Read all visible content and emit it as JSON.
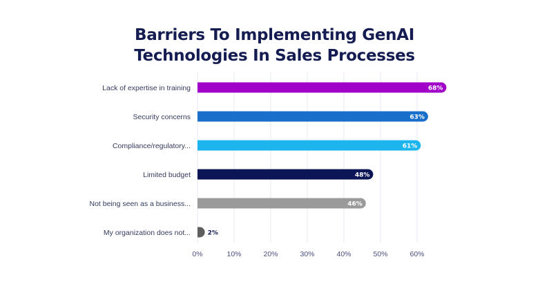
{
  "chart_data": {
    "type": "bar",
    "orientation": "horizontal",
    "title": "Barriers To Implementing GenAI Technologies In Sales Processes",
    "title_lines": [
      "Barriers To Implementing GenAI",
      "Technologies In Sales Processes"
    ],
    "categories": [
      "Lack of expertise in training",
      "Security concerns",
      "Compliance/regulatory...",
      "Limited budget",
      "Not being seen as a business...",
      "My organization does not..."
    ],
    "values": [
      68,
      63,
      61,
      48,
      46,
      2
    ],
    "value_labels": [
      "68%",
      "63%",
      "61%",
      "48%",
      "46%",
      "2%"
    ],
    "colors": [
      "#a100c8",
      "#1a6fcb",
      "#1cb5ee",
      "#0c1657",
      "#9a9a9a",
      "#5e5e5e"
    ],
    "xlim": [
      0,
      60
    ],
    "xticks": [
      0,
      10,
      20,
      30,
      40,
      50,
      60
    ],
    "xtick_labels": [
      "0%",
      "10%",
      "20%",
      "30%",
      "40%",
      "50%",
      "60%"
    ],
    "xlabel": "",
    "ylabel": "",
    "grid": true,
    "legend": "none"
  }
}
